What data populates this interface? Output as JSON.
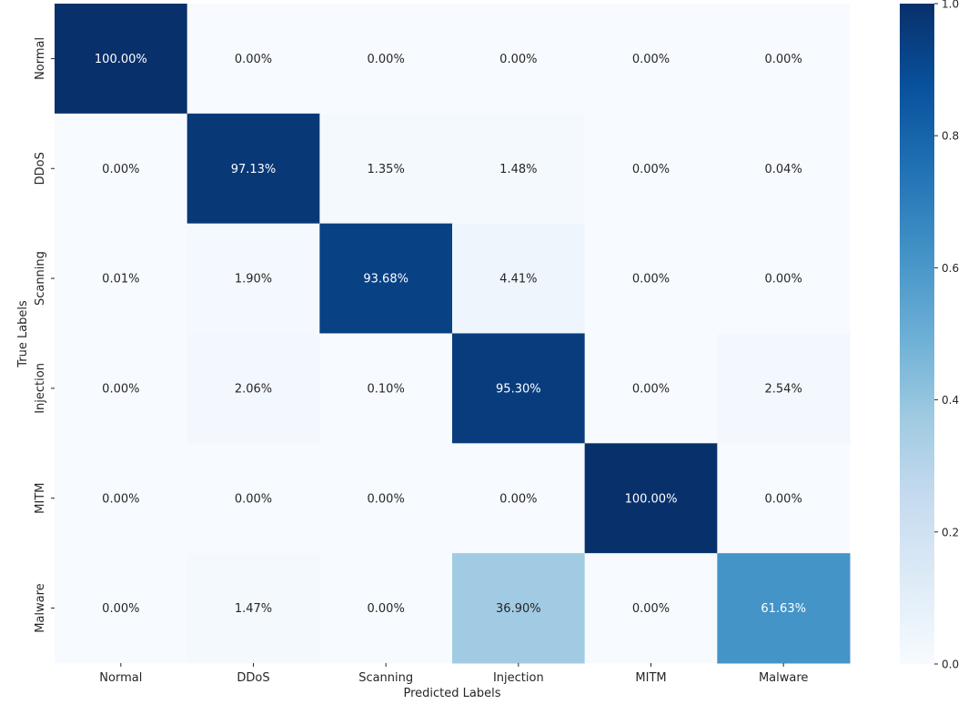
{
  "chart_data": {
    "type": "heatmap",
    "title": "",
    "xlabel": "Predicted Labels",
    "ylabel": "True Labels",
    "x_categories": [
      "Normal",
      "DDoS",
      "Scanning",
      "Injection",
      "MITM",
      "Malware"
    ],
    "y_categories": [
      "Normal",
      "DDoS",
      "Scanning",
      "Injection",
      "MITM",
      "Malware"
    ],
    "values": [
      [
        1.0,
        0.0,
        0.0,
        0.0,
        0.0,
        0.0
      ],
      [
        0.0,
        0.9713,
        0.0135,
        0.0148,
        0.0,
        0.0004
      ],
      [
        0.0001,
        0.019,
        0.9368,
        0.0441,
        0.0,
        0.0
      ],
      [
        0.0,
        0.0206,
        0.001,
        0.953,
        0.0,
        0.0254
      ],
      [
        0.0,
        0.0,
        0.0,
        0.0,
        1.0,
        0.0
      ],
      [
        0.0,
        0.0147,
        0.0,
        0.369,
        0.0,
        0.6163
      ]
    ],
    "cell_labels": [
      [
        "100.00%",
        "0.00%",
        "0.00%",
        "0.00%",
        "0.00%",
        "0.00%"
      ],
      [
        "0.00%",
        "97.13%",
        "1.35%",
        "1.48%",
        "0.00%",
        "0.04%"
      ],
      [
        "0.01%",
        "1.90%",
        "93.68%",
        "4.41%",
        "0.00%",
        "0.00%"
      ],
      [
        "0.00%",
        "2.06%",
        "0.10%",
        "95.30%",
        "0.00%",
        "2.54%"
      ],
      [
        "0.00%",
        "0.00%",
        "0.00%",
        "0.00%",
        "100.00%",
        "0.00%"
      ],
      [
        "0.00%",
        "1.47%",
        "0.00%",
        "36.90%",
        "0.00%",
        "61.63%"
      ]
    ],
    "colormap": "Blues",
    "colorbar": {
      "range": [
        0.0,
        1.0
      ],
      "ticks": [
        0.0,
        0.2,
        0.4,
        0.6,
        0.8,
        1.0
      ],
      "tick_labels": [
        "0.0",
        "0.2",
        "0.4",
        "0.6",
        "0.8",
        "1.0"
      ]
    },
    "colors": {
      "low": "#f7fbff",
      "high": "#08306b",
      "text_dark": "#262626",
      "text_light": "#ffffff"
    }
  }
}
